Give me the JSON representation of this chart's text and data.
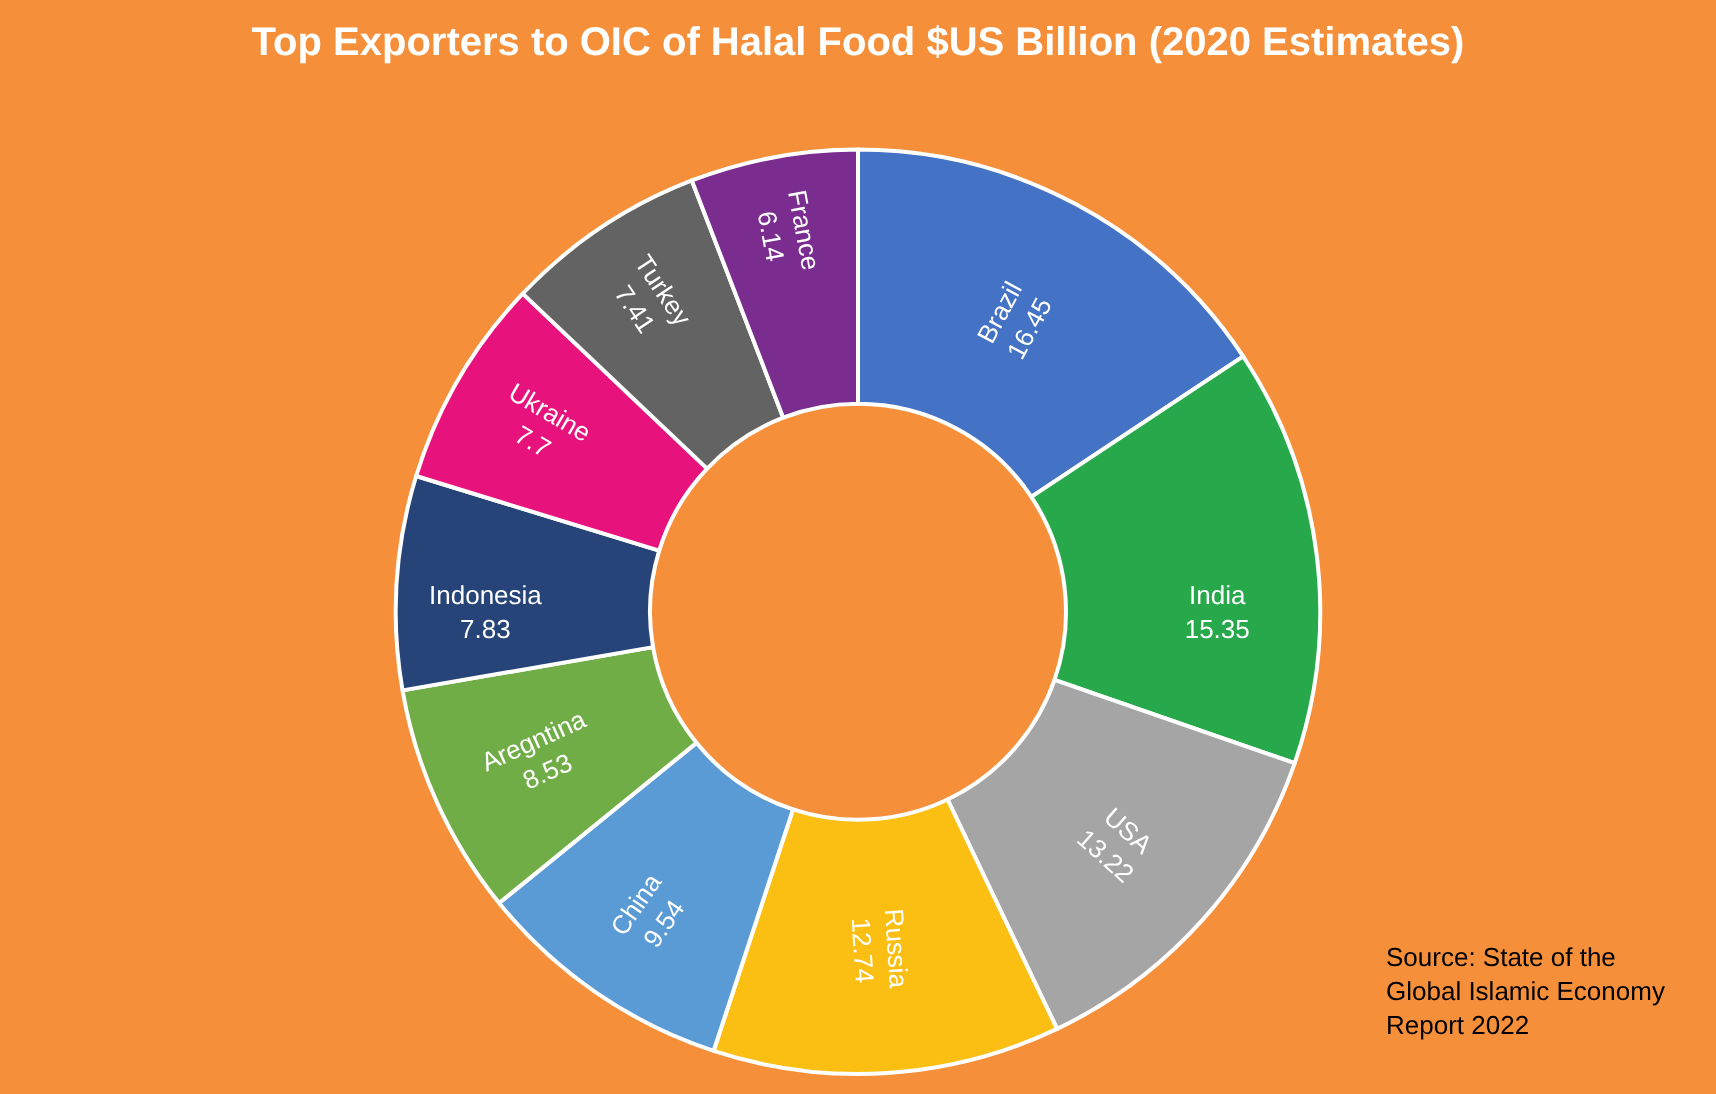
{
  "chart_data": {
    "type": "donut",
    "title": "Top Exporters to OIC of Halal Food $US Billion (2020 Estimates)",
    "categories": [
      "Brazil",
      "India",
      "USA",
      "Russia",
      "China",
      "Aregntina",
      "Indonesia",
      "Ukraine",
      "Turkey",
      "France"
    ],
    "values": [
      16.45,
      15.35,
      13.22,
      12.74,
      9.54,
      8.53,
      7.83,
      7.7,
      7.41,
      6.14
    ],
    "colors": [
      "#4472c4",
      "#27a84a",
      "#a5a5a5",
      "#fbbf14",
      "#5b9bd5",
      "#70ad47",
      "#264478",
      "#e8127c",
      "#636363",
      "#7b2c8f"
    ],
    "data_labels": true,
    "legend": false,
    "annotations": [
      "Source: State of the\nGlobal Islamic Economy\nReport 2022"
    ]
  }
}
